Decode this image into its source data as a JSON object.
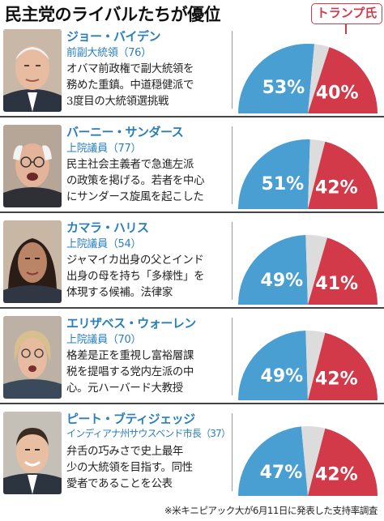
{
  "title": "民主党のライバルたちが優位",
  "trump_label": "トランプ氏",
  "footnote": "※米キニピアック大が6月11日に発表した支持率調査",
  "colors": {
    "democrat": "#4a9fd2",
    "trump": "#d23a4a",
    "undecided": "#dcdcdc",
    "name_text": "#2a7fba"
  },
  "candidates": [
    {
      "name": "ジョー・バイデン",
      "role": "前副大統領（76）",
      "desc": "オバマ前政権で副大統領を\n務めた重鎮。中道穏健派で\n3度目の大統領選挑戦"
    },
    {
      "name": "バーニー・サンダース",
      "role": "上院議員（77）",
      "desc": "民主社会主義者で急進左派\nの政策を掲げる。若者を中心\nにサンダース旋風を起こした"
    },
    {
      "name": "カマラ・ハリス",
      "role": "上院議員（54）",
      "desc": "ジャマイカ出身の父とインド\n出身の母を持ち「多様性」を\n体現する候補。法律家"
    },
    {
      "name": "エリザベス・ウォーレン",
      "role": "上院議員（70）",
      "desc": "格差是正を重視し富裕層課\n税を提唱する党内左派の中\n心。元ハーバード大教授"
    },
    {
      "name": "ピート・ブティジェッジ",
      "role": "インディアナ州サウスベンド市長（37）",
      "desc": "弁舌の巧みさで史上最年\n少の大統領を目指す。同性\n愛者であることを公表"
    }
  ],
  "chart_data": [
    {
      "type": "pie",
      "categories": [
        "ジョー・バイデン",
        "トランプ氏"
      ],
      "values": [
        53,
        40
      ],
      "labels": [
        "53%",
        "40%"
      ]
    },
    {
      "type": "pie",
      "categories": [
        "バーニー・サンダース",
        "トランプ氏"
      ],
      "values": [
        51,
        42
      ],
      "labels": [
        "51%",
        "42%"
      ]
    },
    {
      "type": "pie",
      "categories": [
        "カマラ・ハリス",
        "トランプ氏"
      ],
      "values": [
        49,
        41
      ],
      "labels": [
        "49%",
        "41%"
      ]
    },
    {
      "type": "pie",
      "categories": [
        "エリザベス・ウォーレン",
        "トランプ氏"
      ],
      "values": [
        49,
        42
      ],
      "labels": [
        "49%",
        "42%"
      ]
    },
    {
      "type": "pie",
      "categories": [
        "ピート・ブティジェッジ",
        "トランプ氏"
      ],
      "values": [
        47,
        42
      ],
      "labels": [
        "47%",
        "42%"
      ]
    }
  ]
}
